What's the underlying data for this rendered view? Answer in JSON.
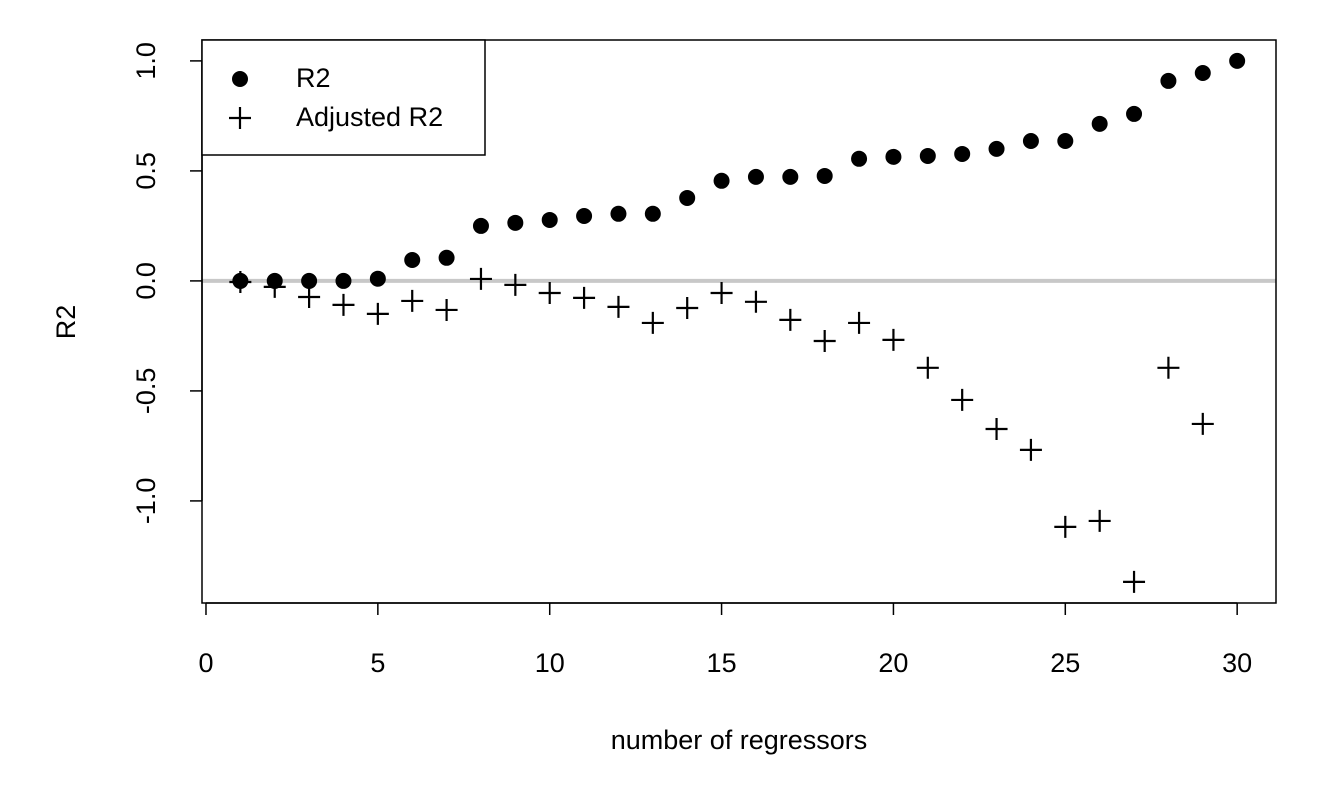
{
  "chart_data": {
    "type": "scatter",
    "xlabel": "number of regressors",
    "ylabel": "R2",
    "xlim": [
      -0.116,
      31.13
    ],
    "ylim": [
      -1.464,
      1.095
    ],
    "xticks": [
      0,
      5,
      10,
      15,
      20,
      25,
      30
    ],
    "yticks": [
      {
        "value": -1,
        "label": "-1.0"
      },
      {
        "value": -0.5,
        "label": "-0.5"
      },
      {
        "value": 0,
        "label": "0.0"
      },
      {
        "value": 0.5,
        "label": "0.5"
      },
      {
        "value": 1,
        "label": "1.0"
      }
    ],
    "reference_line": {
      "value": 0,
      "color": "#c8c8c8"
    },
    "legend": "top-left",
    "series": [
      {
        "name": "R2",
        "color": "#000000",
        "marker": "circle",
        "x": [
          1,
          2,
          3,
          4,
          5,
          6,
          7,
          8,
          9,
          10,
          11,
          12,
          13,
          14,
          15,
          16,
          17,
          18,
          19,
          20,
          21,
          22,
          23,
          24,
          25,
          26,
          27,
          28,
          29,
          30
        ],
        "values": [
          0.0,
          0.0,
          0.0,
          0.0,
          0.01,
          0.095,
          0.105,
          0.25,
          0.264,
          0.277,
          0.295,
          0.305,
          0.305,
          0.377,
          0.455,
          0.473,
          0.473,
          0.477,
          0.555,
          0.564,
          0.568,
          0.577,
          0.6,
          0.636,
          0.636,
          0.714,
          0.759,
          0.909,
          0.945,
          1.0
        ]
      },
      {
        "name": "Adjusted R2",
        "color": "#000000",
        "marker": "plus",
        "x": [
          1,
          2,
          3,
          4,
          5,
          6,
          7,
          8,
          9,
          10,
          11,
          12,
          13,
          14,
          15,
          16,
          17,
          18,
          19,
          20,
          21,
          22,
          23,
          24,
          25,
          26,
          27,
          28,
          29
        ],
        "values": [
          -0.005,
          -0.027,
          -0.073,
          -0.109,
          -0.15,
          -0.091,
          -0.132,
          0.009,
          -0.018,
          -0.055,
          -0.077,
          -0.118,
          -0.191,
          -0.123,
          -0.055,
          -0.095,
          -0.177,
          -0.273,
          -0.191,
          -0.268,
          -0.395,
          -0.541,
          -0.673,
          -0.768,
          -1.118,
          -1.091,
          -1.368,
          -0.395,
          -0.65
        ]
      }
    ]
  }
}
